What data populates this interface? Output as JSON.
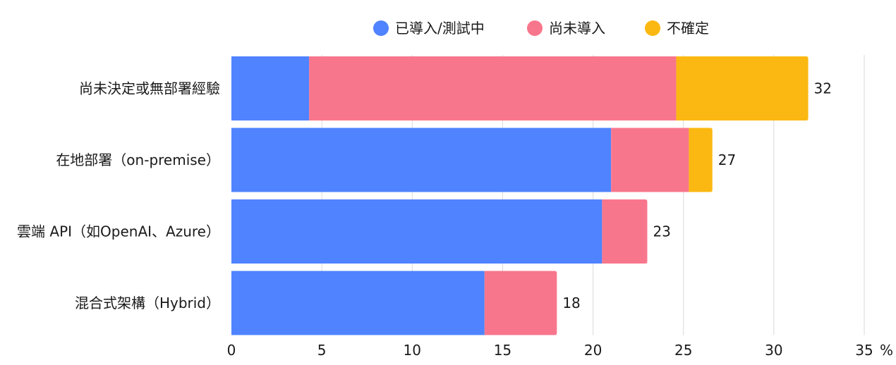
{
  "chart_data": {
    "type": "bar",
    "orientation": "horizontal",
    "stacked": true,
    "categories": [
      "尚未決定或無部署經驗",
      "在地部署（on-premise）",
      "雲端 API（如OpenAI、Azure）",
      "混合式架構（Hybrid）"
    ],
    "series": [
      {
        "name": "已導入/測試中",
        "values": [
          4.3,
          21.0,
          20.5,
          14.0
        ],
        "color": "#4f83ff"
      },
      {
        "name": "尚未導入",
        "values": [
          20.3,
          4.3,
          2.5,
          4.0
        ],
        "color": "#f8768c"
      },
      {
        "name": "不確定",
        "values": [
          7.3,
          1.3,
          0,
          0
        ],
        "color": "#fbb812"
      }
    ],
    "totals": [
      "32",
      "27",
      "23",
      "18"
    ],
    "xlim": [
      0,
      35
    ],
    "xticks": [
      "0",
      "5",
      "10",
      "15",
      "20",
      "25",
      "30",
      "35"
    ],
    "x_unit": "%",
    "grid": true,
    "legend_position": "top"
  }
}
